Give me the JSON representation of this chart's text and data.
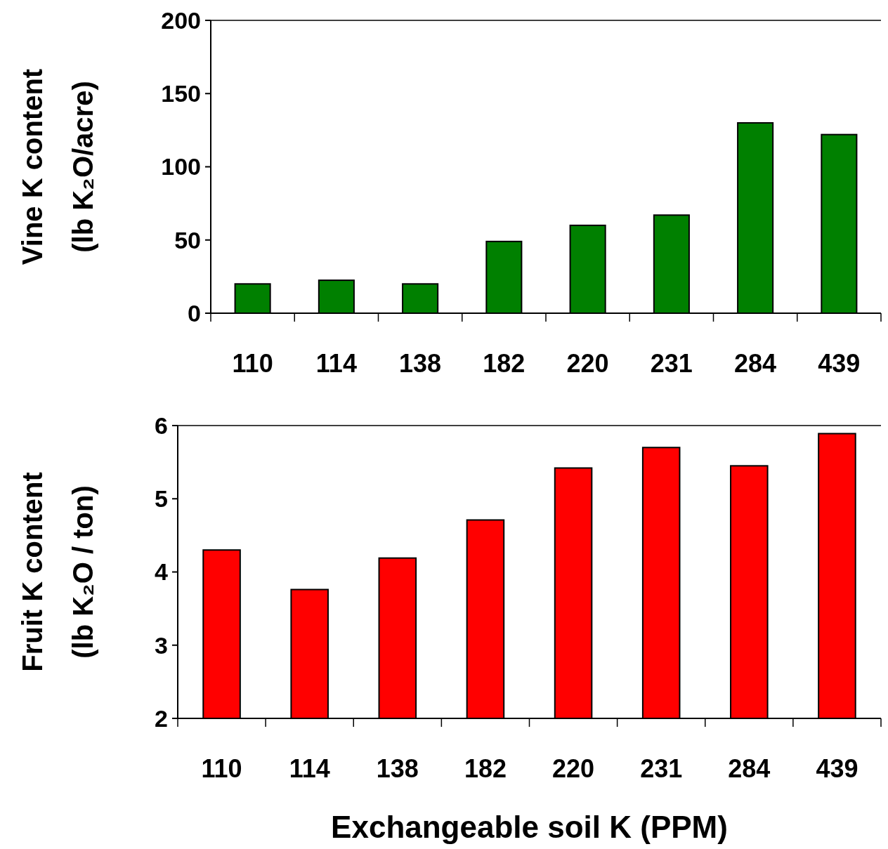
{
  "chart_data": [
    {
      "type": "bar",
      "ylabel": "Vine K content\n(lb K₂O/acre)",
      "categories": [
        "110",
        "114",
        "138",
        "182",
        "220",
        "231",
        "284",
        "439"
      ],
      "values": [
        20,
        22.5,
        20,
        49,
        60,
        67,
        130,
        122
      ],
      "color": "#008000",
      "ylim": [
        0,
        200
      ],
      "yticks": [
        0,
        50,
        100,
        150,
        200
      ]
    },
    {
      "type": "bar",
      "ylabel": "Fruit K content\n(lb K₂O / ton)",
      "xlabel": "Exchangeable soil K (PPM)",
      "categories": [
        "110",
        "114",
        "138",
        "182",
        "220",
        "231",
        "284",
        "439"
      ],
      "values": [
        4.3,
        3.76,
        4.19,
        4.71,
        5.42,
        5.7,
        5.45,
        5.89
      ],
      "color": "#ff0000",
      "ylim": [
        2,
        6
      ],
      "yticks": [
        2,
        3,
        4,
        5,
        6
      ]
    }
  ]
}
